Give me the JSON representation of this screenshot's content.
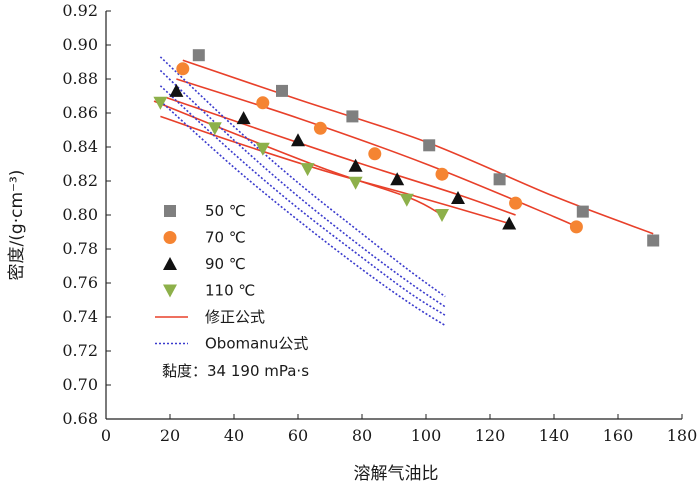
{
  "chart_data": {
    "type": "scatter",
    "xlabel": "溶解气油比",
    "ylabel": "密度/(g·cm⁻³)",
    "xlim": [
      0,
      180
    ],
    "ylim": [
      0.68,
      0.92
    ],
    "x_ticks": [
      "0",
      "20",
      "40",
      "60",
      "80",
      "100",
      "120",
      "140",
      "160",
      "180"
    ],
    "y_ticks": [
      "0.68",
      "0.70",
      "0.72",
      "0.74",
      "0.76",
      "0.78",
      "0.80",
      "0.82",
      "0.84",
      "0.86",
      "0.88",
      "0.90",
      "0.92"
    ],
    "grid": false,
    "legend_position": "left-middle",
    "annotation": "黏度：34 190 mPa·s",
    "series": [
      {
        "name": "50 ℃",
        "kind": "scatter",
        "marker": "square",
        "color": "#7f7f7f",
        "x": [
          29,
          55,
          77,
          101,
          123,
          149,
          171
        ],
        "y": [
          0.894,
          0.873,
          0.858,
          0.841,
          0.821,
          0.802,
          0.785
        ]
      },
      {
        "name": "70 ℃",
        "kind": "scatter",
        "marker": "circle",
        "color": "#f58432",
        "x": [
          24,
          49,
          67,
          84,
          105,
          128,
          147
        ],
        "y": [
          0.886,
          0.866,
          0.851,
          0.836,
          0.824,
          0.807,
          0.793
        ]
      },
      {
        "name": "90 ℃",
        "kind": "scatter",
        "marker": "triangle-up",
        "color": "#111111",
        "x": [
          22,
          43,
          60,
          78,
          91,
          110,
          126
        ],
        "y": [
          0.873,
          0.857,
          0.844,
          0.829,
          0.821,
          0.81,
          0.795
        ]
      },
      {
        "name": "110 ℃",
        "kind": "scatter",
        "marker": "triangle-down",
        "color": "#8db04a",
        "x": [
          17,
          34,
          49,
          63,
          78,
          94,
          105
        ],
        "y": [
          0.866,
          0.851,
          0.839,
          0.827,
          0.819,
          0.809,
          0.8
        ]
      },
      {
        "name": "修正公式",
        "kind": "line",
        "style": "solid",
        "color": "#e8402a",
        "lines": [
          {
            "x": [
              24,
              60,
              100,
              140,
              171
            ],
            "y": [
              0.891,
              0.868,
              0.843,
              0.811,
              0.789
            ]
          },
          {
            "x": [
              22,
              60,
              100,
              140,
              147
            ],
            "y": [
              0.88,
              0.857,
              0.83,
              0.799,
              0.793
            ]
          },
          {
            "x": [
              19,
              50,
              80,
              110,
              128
            ],
            "y": [
              0.869,
              0.849,
              0.83,
              0.812,
              0.8
            ]
          },
          {
            "x": [
              17,
              40,
              70,
              95,
              126
            ],
            "y": [
              0.858,
              0.843,
              0.825,
              0.812,
              0.795
            ]
          },
          {
            "x": [
              15,
              40,
              70,
              95,
              105
            ],
            "y": [
              0.867,
              0.848,
              0.826,
              0.81,
              0.8
            ]
          }
        ]
      },
      {
        "name": "Obomanu公式",
        "kind": "line",
        "style": "dotted",
        "color": "#3a3acd",
        "lines": [
          {
            "x": [
              17,
              40,
              60,
              80,
              95,
              106
            ],
            "y": [
              0.893,
              0.852,
              0.819,
              0.789,
              0.767,
              0.752
            ]
          },
          {
            "x": [
              17,
              40,
              60,
              80,
              95,
              106
            ],
            "y": [
              0.885,
              0.844,
              0.811,
              0.781,
              0.76,
              0.746
            ]
          },
          {
            "x": [
              17,
              40,
              60,
              80,
              95,
              106
            ],
            "y": [
              0.876,
              0.836,
              0.804,
              0.775,
              0.754,
              0.741
            ]
          },
          {
            "x": [
              17,
              40,
              60,
              80,
              95,
              106
            ],
            "y": [
              0.867,
              0.828,
              0.797,
              0.768,
              0.748,
              0.735
            ]
          }
        ]
      }
    ]
  }
}
